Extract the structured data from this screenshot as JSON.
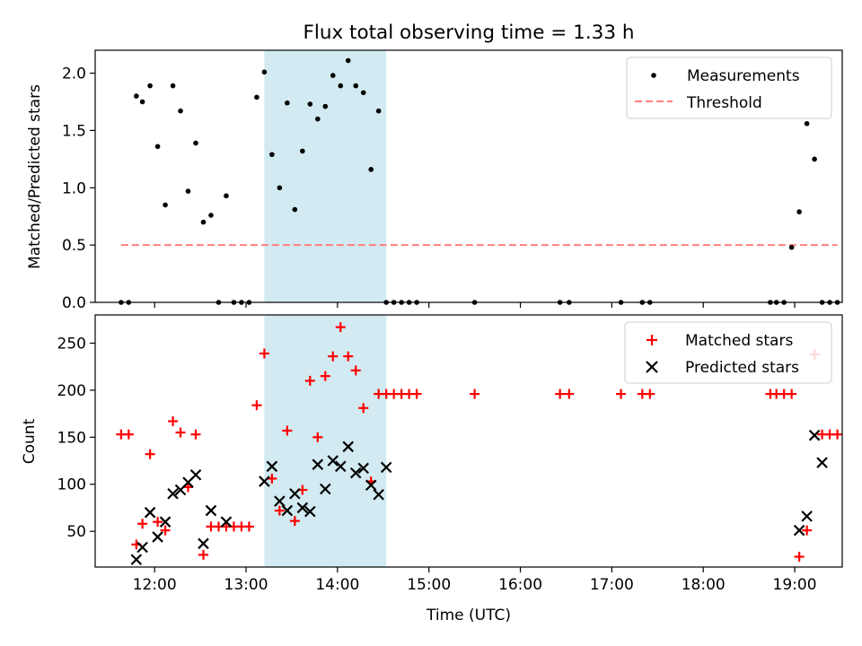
{
  "chart_data": [
    {
      "type": "scatter",
      "title": "Flux total observing time = 1.33 h",
      "xlabel": "",
      "ylabel": "Matched/Predicted stars",
      "ylim": [
        0,
        2.2
      ],
      "yticks": [
        0.0,
        0.5,
        1.0,
        1.5,
        2.0
      ],
      "ytick_labels": [
        "0.0",
        "0.5",
        "1.0",
        "1.5",
        "2.0"
      ],
      "legend": {
        "position": "top-right",
        "entries": [
          "Measurements",
          "Threshold"
        ]
      },
      "highlight_span": {
        "x": [
          "13:12",
          "14:32"
        ],
        "color": "#add8e6"
      },
      "series": [
        {
          "name": "Measurements",
          "marker": "dot",
          "color": "#000000",
          "x": [
            "11:38",
            "11:43",
            "11:48",
            "11:52",
            "11:57",
            "12:02",
            "12:07",
            "12:12",
            "12:17",
            "12:22",
            "12:27",
            "12:32",
            "12:37",
            "12:42",
            "12:47",
            "12:52",
            "12:57",
            "13:02",
            "13:07",
            "13:12",
            "13:17",
            "13:22",
            "13:27",
            "13:32",
            "13:37",
            "13:42",
            "13:47",
            "13:52",
            "13:57",
            "14:02",
            "14:07",
            "14:12",
            "14:17",
            "14:22",
            "14:27",
            "14:32",
            "14:37",
            "14:42",
            "14:47",
            "14:52",
            "15:30",
            "16:26",
            "16:32",
            "17:06",
            "17:20",
            "17:25",
            "18:44",
            "18:48",
            "18:53",
            "18:58",
            "19:03",
            "19:08",
            "19:13",
            "19:18",
            "19:23",
            "19:28"
          ],
          "y": [
            0,
            0,
            1.8,
            1.75,
            1.89,
            1.36,
            0.85,
            1.89,
            1.67,
            0.97,
            1.39,
            0.7,
            0.76,
            0,
            0.93,
            0,
            0,
            0,
            1.79,
            2.01,
            1.29,
            1.0,
            1.74,
            0.81,
            1.32,
            1.73,
            1.6,
            1.71,
            1.98,
            1.89,
            2.11,
            1.89,
            1.83,
            1.16,
            1.67,
            0,
            0,
            0,
            0,
            0,
            0,
            0,
            0,
            0,
            0,
            0,
            0,
            0,
            0,
            0.48,
            0.79,
            1.56,
            1.25,
            0,
            0,
            0
          ]
        },
        {
          "name": "Threshold",
          "style": "dashed",
          "color": "#ff7f7f",
          "x": [
            "11:38",
            "19:28"
          ],
          "y": [
            0.5,
            0.5
          ]
        }
      ]
    },
    {
      "type": "scatter",
      "title": "",
      "xlabel": "Time (UTC)",
      "ylabel": "Count",
      "ylim": [
        12,
        280
      ],
      "yticks": [
        50,
        100,
        150,
        200,
        250
      ],
      "ytick_labels": [
        "50",
        "100",
        "150",
        "200",
        "250"
      ],
      "xticks": [
        "12:00",
        "13:00",
        "14:00",
        "15:00",
        "16:00",
        "17:00",
        "18:00",
        "19:00"
      ],
      "legend": {
        "position": "top-right",
        "entries": [
          "Matched stars",
          "Predicted stars"
        ]
      },
      "highlight_span": {
        "x": [
          "13:12",
          "14:32"
        ],
        "color": "#add8e6"
      },
      "series": [
        {
          "name": "Matched stars",
          "marker": "plus",
          "color": "#ff0000",
          "x": [
            "11:38",
            "11:43",
            "11:48",
            "11:52",
            "11:57",
            "12:02",
            "12:07",
            "12:12",
            "12:17",
            "12:22",
            "12:27",
            "12:32",
            "12:37",
            "12:42",
            "12:47",
            "12:52",
            "12:57",
            "13:02",
            "13:07",
            "13:12",
            "13:17",
            "13:22",
            "13:27",
            "13:32",
            "13:37",
            "13:42",
            "13:47",
            "13:52",
            "13:57",
            "14:02",
            "14:07",
            "14:12",
            "14:17",
            "14:22",
            "14:27",
            "14:32",
            "14:37",
            "14:42",
            "14:47",
            "14:52",
            "15:30",
            "16:26",
            "16:32",
            "17:06",
            "17:20",
            "17:25",
            "18:44",
            "18:48",
            "18:53",
            "18:58",
            "19:03",
            "19:08",
            "19:13",
            "19:18",
            "19:23",
            "19:28"
          ],
          "y": [
            153,
            153,
            36,
            58,
            132,
            60,
            51,
            167,
            155,
            97,
            153,
            25,
            55,
            55,
            55,
            55,
            55,
            55,
            184,
            239,
            106,
            72,
            157,
            61,
            94,
            210,
            150,
            215,
            236,
            267,
            236,
            221,
            181,
            103,
            196,
            196,
            196,
            196,
            196,
            196,
            196,
            196,
            196,
            196,
            196,
            196,
            196,
            196,
            196,
            196,
            23,
            51,
            238,
            153,
            153,
            153
          ]
        },
        {
          "name": "Predicted stars",
          "marker": "x",
          "color": "#000000",
          "x": [
            "11:48",
            "11:52",
            "11:57",
            "12:02",
            "12:07",
            "12:12",
            "12:17",
            "12:22",
            "12:27",
            "12:32",
            "12:37",
            "12:47",
            "13:12",
            "13:17",
            "13:22",
            "13:27",
            "13:32",
            "13:37",
            "13:42",
            "13:47",
            "13:52",
            "13:57",
            "14:02",
            "14:07",
            "14:12",
            "14:17",
            "14:22",
            "14:27",
            "14:32",
            "19:03",
            "19:08",
            "19:13",
            "19:18"
          ],
          "y": [
            20,
            33,
            70,
            44,
            60,
            90,
            94,
            102,
            110,
            37,
            72,
            60,
            103,
            119,
            82,
            72,
            90,
            75,
            71,
            121,
            95,
            125,
            119,
            140,
            112,
            117,
            99,
            89,
            118,
            51,
            66,
            152,
            123
          ]
        }
      ]
    }
  ]
}
